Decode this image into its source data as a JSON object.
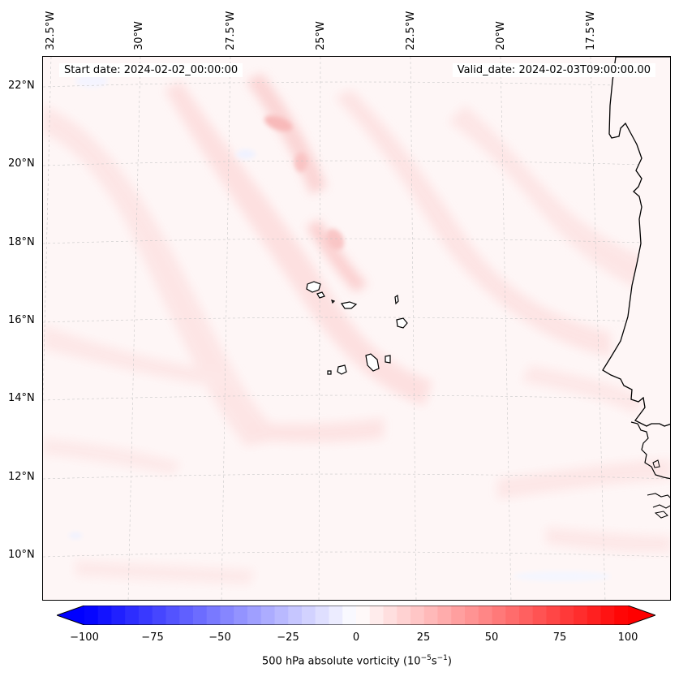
{
  "lon_labels": [
    "32.5°W",
    "30°W",
    "27.5°W",
    "25°W",
    "22.5°W",
    "20°W",
    "17.5°W"
  ],
  "lat_labels": [
    "22°N",
    "20°N",
    "18°N",
    "16°N",
    "14°N",
    "12°N",
    "10°N"
  ],
  "start_date_text": "Start date: 2024-02-02_00:00:00",
  "valid_date_text": "Valid_date: 2024-02-03T09:00:00.00",
  "colorbar": {
    "ticks": [
      "−100",
      "−75",
      "−50",
      "−25",
      "0",
      "25",
      "50",
      "75",
      "100"
    ],
    "min": -100,
    "max": 100,
    "levels": 40,
    "label_main": "500 hPa absolute vorticity (10",
    "label_exp1": "−5",
    "label_mid": "s",
    "label_exp2": "−1",
    "label_end": ")",
    "colormap": "bwr",
    "extend": "both"
  },
  "colors": {
    "background_field": "#fef6f6",
    "coastline": "#000000",
    "gridline": "#bbbbbb"
  }
}
